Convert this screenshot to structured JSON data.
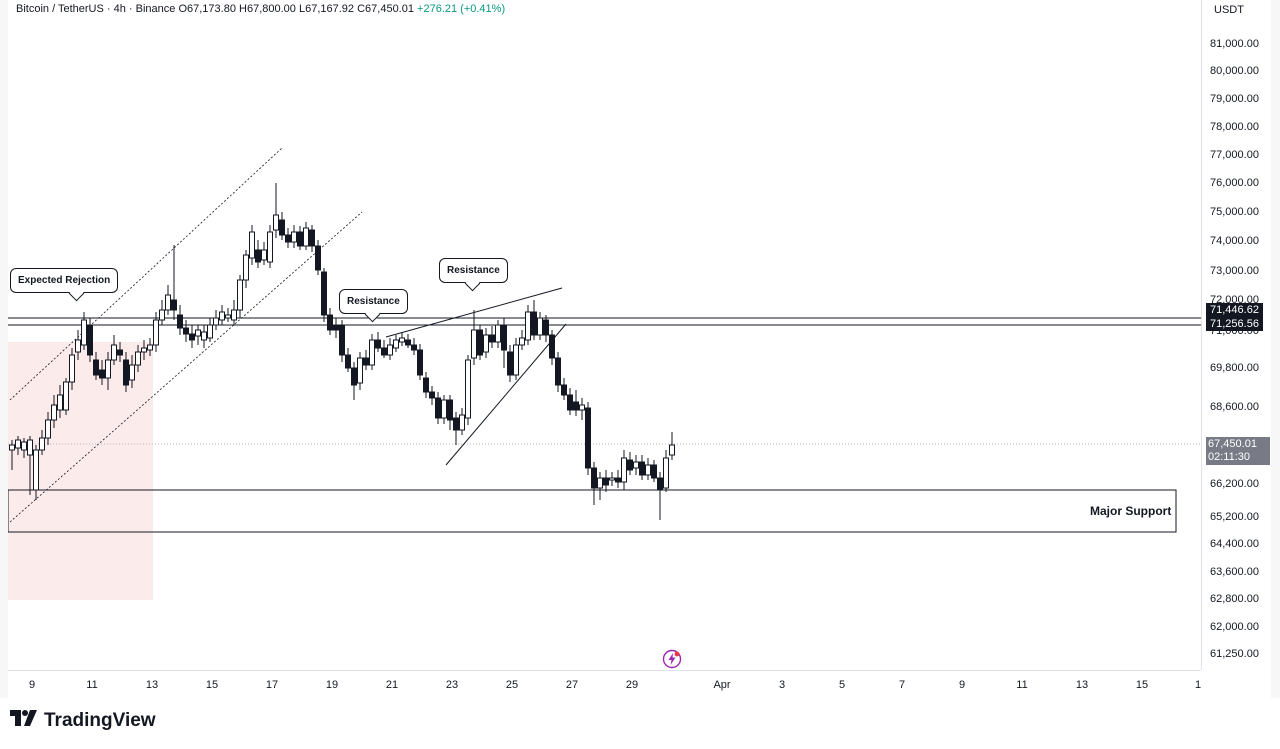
{
  "legend": {
    "symbol": "Bitcoin / TetherUS · 4h · Binance",
    "open": "O67,173.80",
    "high": "H67,800.00",
    "low": "L67,167.92",
    "close": "C67,450.01",
    "change": "+276.21 (+0.41%)"
  },
  "price_axis": {
    "currency": "USDT",
    "ticks": [
      "81,000.00",
      "80,000.00",
      "79,000.00",
      "78,000.00",
      "77,000.00",
      "76,000.00",
      "75,000.00",
      "74,000.00",
      "73,000.00",
      "72,000.00",
      "71,000.00",
      "69,800.00",
      "68,600.00",
      "67,400.00",
      "66,200.00",
      "65,200.00",
      "64,400.00",
      "63,600.00",
      "62,800.00",
      "62,000.00",
      "61,250.00"
    ],
    "level_labels": [
      "71,446.62",
      "71,256.56"
    ],
    "current_price": "67,450.01",
    "countdown": "02:11:30"
  },
  "time_axis": {
    "ticks": [
      "9",
      "11",
      "13",
      "15",
      "17",
      "19",
      "21",
      "23",
      "25",
      "27",
      "29",
      "Apr",
      "3",
      "5",
      "7",
      "9",
      "11",
      "13",
      "15",
      "1"
    ]
  },
  "annotations": {
    "expected_rejection": "Expected Rejection",
    "resistance_1": "Resistance",
    "resistance_2": "Resistance",
    "major_support": "Major Support"
  },
  "colors": {
    "up": "#089981",
    "down": "#131722",
    "candle_body_up": "#ffffff",
    "candle_body_down": "#131722",
    "zone_fill": "#fdecec",
    "line": "#131722"
  },
  "icons": {
    "bolt": "lightning-icon"
  },
  "branding": {
    "name": "TradingView"
  }
}
